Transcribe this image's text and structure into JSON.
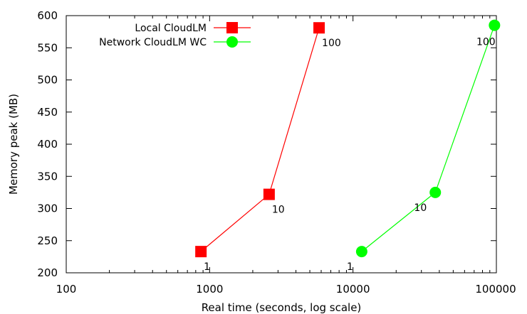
{
  "chart_data": {
    "type": "scatter",
    "xlabel": "Real time (seconds, log scale)",
    "ylabel": "Memory peak (MB)",
    "xscale": "log",
    "xlim": [
      100,
      100000
    ],
    "ylim": [
      200,
      600
    ],
    "xticks": [
      100,
      1000,
      10000,
      100000
    ],
    "xtick_labels": [
      "100",
      "1000",
      "10000",
      "100000"
    ],
    "yticks": [
      200,
      250,
      300,
      350,
      400,
      450,
      500,
      550,
      600
    ],
    "ytick_labels": [
      "200",
      "250",
      "300",
      "350",
      "400",
      "450",
      "500",
      "550",
      "600"
    ],
    "grid": false,
    "legend_position": "top-left",
    "series": [
      {
        "name": "Local CloudLM",
        "color": "#ff0000",
        "marker": "square",
        "points": [
          {
            "x": 870,
            "y": 233,
            "label": "1"
          },
          {
            "x": 2600,
            "y": 322,
            "label": "10"
          },
          {
            "x": 5800,
            "y": 581,
            "label": "100"
          }
        ]
      },
      {
        "name": "Network CloudLM WC",
        "color": "#00ff00",
        "marker": "circle",
        "points": [
          {
            "x": 11500,
            "y": 233,
            "label": "1"
          },
          {
            "x": 37500,
            "y": 325,
            "label": "10"
          },
          {
            "x": 97000,
            "y": 585,
            "label": "100"
          }
        ]
      }
    ]
  }
}
